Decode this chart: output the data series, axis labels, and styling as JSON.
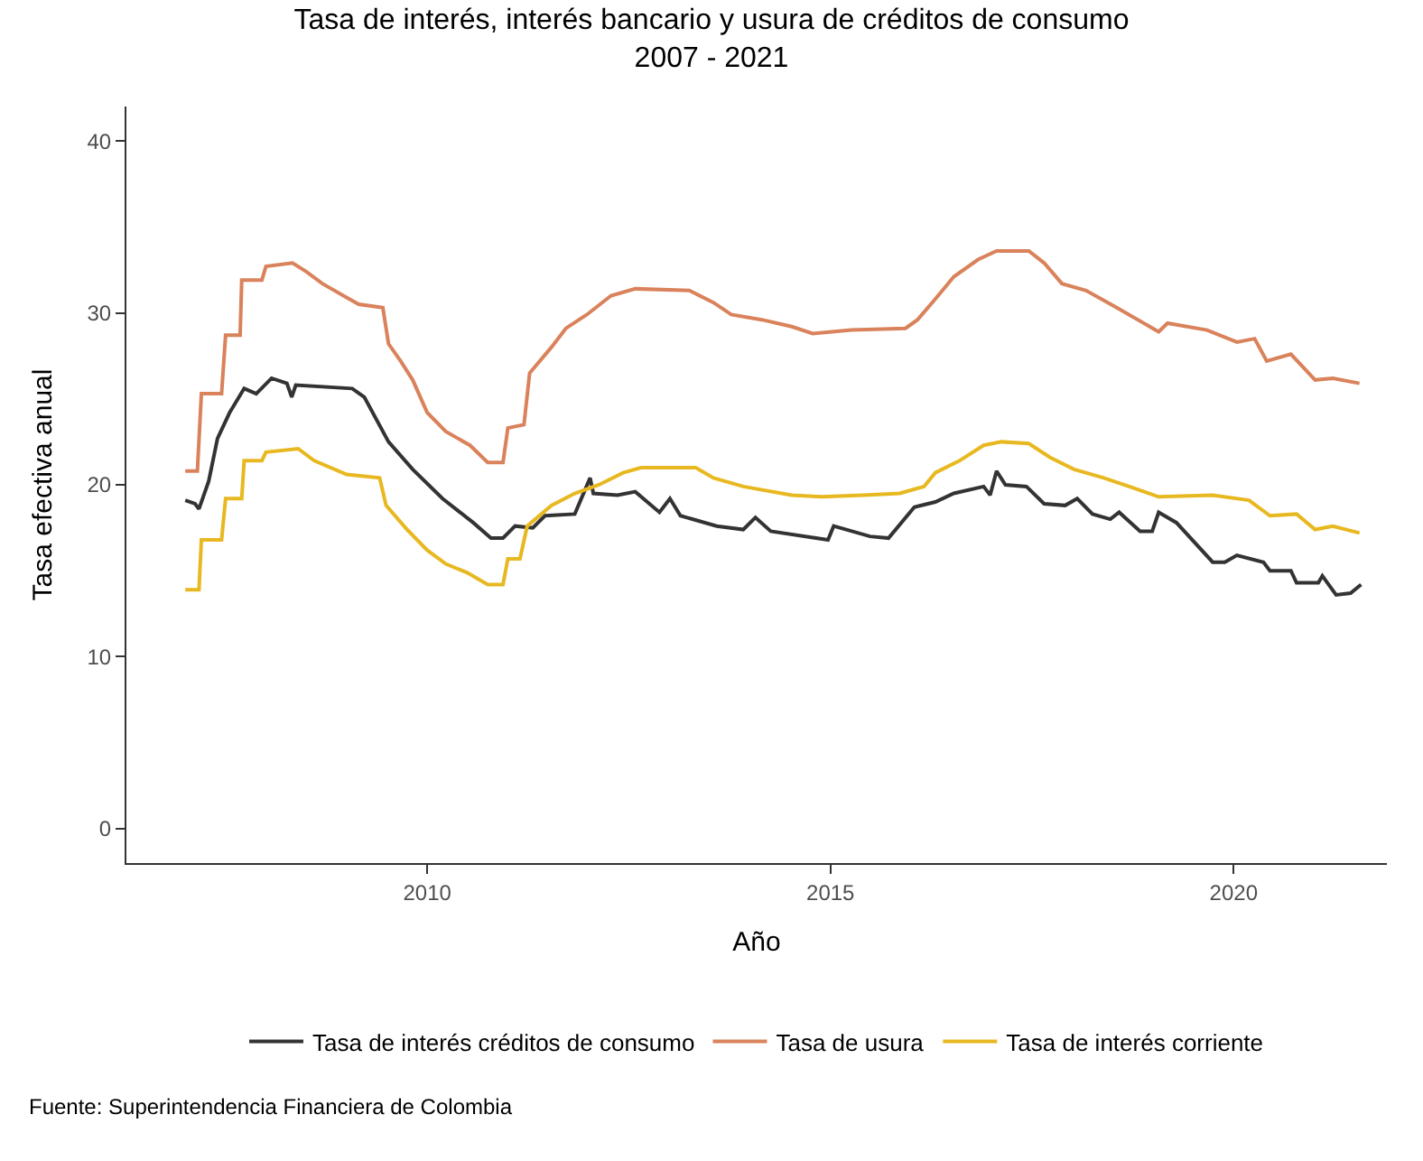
{
  "chart_data": {
    "type": "line",
    "title": "Tasa de interés, interés bancario y usura de créditos de consumo\n2007 - 2021",
    "xlabel": "Año",
    "ylabel": "Tasa efectiva anual",
    "xlim": [
      2006.27,
      2021.9
    ],
    "xticks": [
      2010,
      2015,
      2020
    ],
    "ylim": [
      -2,
      42
    ],
    "yticks": [
      0,
      10,
      20,
      30,
      40
    ],
    "legend": "bottom",
    "annotations": [
      "Fuente: Superintendencia Financiera de Colombia"
    ],
    "series": [
      {
        "name": "Tasa de interés créditos de consumo",
        "color": "#333333",
        "x": [
          2007.0,
          2007.12,
          2007.17,
          2007.29,
          2007.4,
          2007.55,
          2007.73,
          2007.88,
          2008.07,
          2008.26,
          2008.32,
          2008.37,
          2009.07,
          2009.22,
          2009.52,
          2009.82,
          2010.19,
          2010.57,
          2010.79,
          2010.94,
          2011.09,
          2011.31,
          2011.46,
          2011.83,
          2012.02,
          2012.06,
          2012.36,
          2012.58,
          2012.88,
          2013.01,
          2013.14,
          2013.59,
          2013.92,
          2014.07,
          2014.26,
          2014.97,
          2015.04,
          2015.49,
          2015.72,
          2016.04,
          2016.3,
          2016.53,
          2016.9,
          2016.98,
          2017.06,
          2017.17,
          2017.43,
          2017.65,
          2017.91,
          2018.06,
          2018.25,
          2018.47,
          2018.58,
          2018.84,
          2018.99,
          2019.07,
          2019.29,
          2019.74,
          2019.89,
          2020.04,
          2020.37,
          2020.45,
          2020.71,
          2020.78,
          2021.05,
          2021.1,
          2021.27,
          2021.45,
          2021.58
        ],
        "values": [
          19.1,
          18.9,
          18.6,
          20.2,
          22.7,
          24.2,
          25.6,
          25.3,
          26.2,
          25.9,
          25.1,
          25.8,
          25.6,
          25.1,
          22.5,
          20.9,
          19.2,
          17.8,
          16.9,
          16.9,
          17.6,
          17.5,
          18.2,
          18.3,
          20.4,
          19.5,
          19.4,
          19.6,
          18.4,
          19.2,
          18.2,
          17.6,
          17.4,
          18.1,
          17.3,
          16.8,
          17.6,
          17.0,
          16.9,
          18.7,
          19.0,
          19.5,
          19.9,
          19.4,
          20.8,
          20.0,
          19.9,
          18.9,
          18.8,
          19.2,
          18.3,
          18.0,
          18.4,
          17.3,
          17.3,
          18.4,
          17.8,
          15.5,
          15.5,
          15.9,
          15.5,
          15.0,
          15.0,
          14.3,
          14.3,
          14.7,
          13.6,
          13.7,
          14.2
        ]
      },
      {
        "name": "Tasa de usura",
        "color": "#d9825b",
        "x": [
          2007.0,
          2007.15,
          2007.2,
          2007.45,
          2007.5,
          2007.68,
          2007.7,
          2007.95,
          2008.0,
          2008.33,
          2008.5,
          2008.7,
          2009.0,
          2009.15,
          2009.45,
          2009.52,
          2009.67,
          2009.82,
          2010.0,
          2010.23,
          2010.53,
          2010.75,
          2010.94,
          2011.0,
          2011.2,
          2011.27,
          2011.54,
          2011.72,
          2011.98,
          2012.28,
          2012.58,
          2013.25,
          2013.55,
          2013.77,
          2014.15,
          2014.52,
          2014.78,
          2015.26,
          2015.93,
          2016.08,
          2016.3,
          2016.53,
          2016.83,
          2017.06,
          2017.46,
          2017.65,
          2017.87,
          2018.17,
          2018.55,
          2019.07,
          2019.18,
          2019.67,
          2020.04,
          2020.26,
          2020.41,
          2020.71,
          2021.01,
          2021.23,
          2021.56
        ],
        "values": [
          20.8,
          20.8,
          25.3,
          25.3,
          28.7,
          28.7,
          31.9,
          31.9,
          32.7,
          32.9,
          32.4,
          31.7,
          30.9,
          30.5,
          30.3,
          28.2,
          27.2,
          26.1,
          24.2,
          23.1,
          22.3,
          21.3,
          21.3,
          23.3,
          23.5,
          26.5,
          28.0,
          29.1,
          29.9,
          31.0,
          31.4,
          31.3,
          30.6,
          29.9,
          29.6,
          29.2,
          28.8,
          29.0,
          29.1,
          29.6,
          30.8,
          32.1,
          33.1,
          33.6,
          33.6,
          32.9,
          31.7,
          31.3,
          30.3,
          28.9,
          29.4,
          29.0,
          28.3,
          28.5,
          27.2,
          27.6,
          26.1,
          26.2,
          25.9
        ]
      },
      {
        "name": "Tasa de interés corriente",
        "color": "#e8b820",
        "x": [
          2007.0,
          2007.17,
          2007.2,
          2007.45,
          2007.5,
          2007.7,
          2007.73,
          2007.95,
          2008.0,
          2008.4,
          2008.6,
          2009.0,
          2009.41,
          2009.49,
          2009.75,
          2010.0,
          2010.23,
          2010.49,
          2010.75,
          2010.94,
          2011.0,
          2011.15,
          2011.24,
          2011.54,
          2011.83,
          2012.13,
          2012.43,
          2012.65,
          2013.33,
          2013.55,
          2013.92,
          2014.52,
          2014.89,
          2015.41,
          2015.86,
          2016.16,
          2016.3,
          2016.6,
          2016.9,
          2017.12,
          2017.46,
          2017.72,
          2018.02,
          2018.39,
          2018.77,
          2019.07,
          2019.74,
          2020.19,
          2020.45,
          2020.78,
          2021.01,
          2021.23,
          2021.56
        ],
        "values": [
          13.9,
          13.9,
          16.8,
          16.8,
          19.2,
          19.2,
          21.4,
          21.4,
          21.9,
          22.1,
          21.4,
          20.6,
          20.4,
          18.8,
          17.4,
          16.2,
          15.4,
          14.9,
          14.2,
          14.2,
          15.7,
          15.7,
          17.6,
          18.8,
          19.5,
          20.0,
          20.7,
          21.0,
          21.0,
          20.4,
          19.9,
          19.4,
          19.3,
          19.4,
          19.5,
          19.9,
          20.7,
          21.4,
          22.3,
          22.5,
          22.4,
          21.6,
          20.9,
          20.4,
          19.8,
          19.3,
          19.4,
          19.1,
          18.2,
          18.3,
          17.4,
          17.6,
          17.2
        ]
      }
    ]
  }
}
